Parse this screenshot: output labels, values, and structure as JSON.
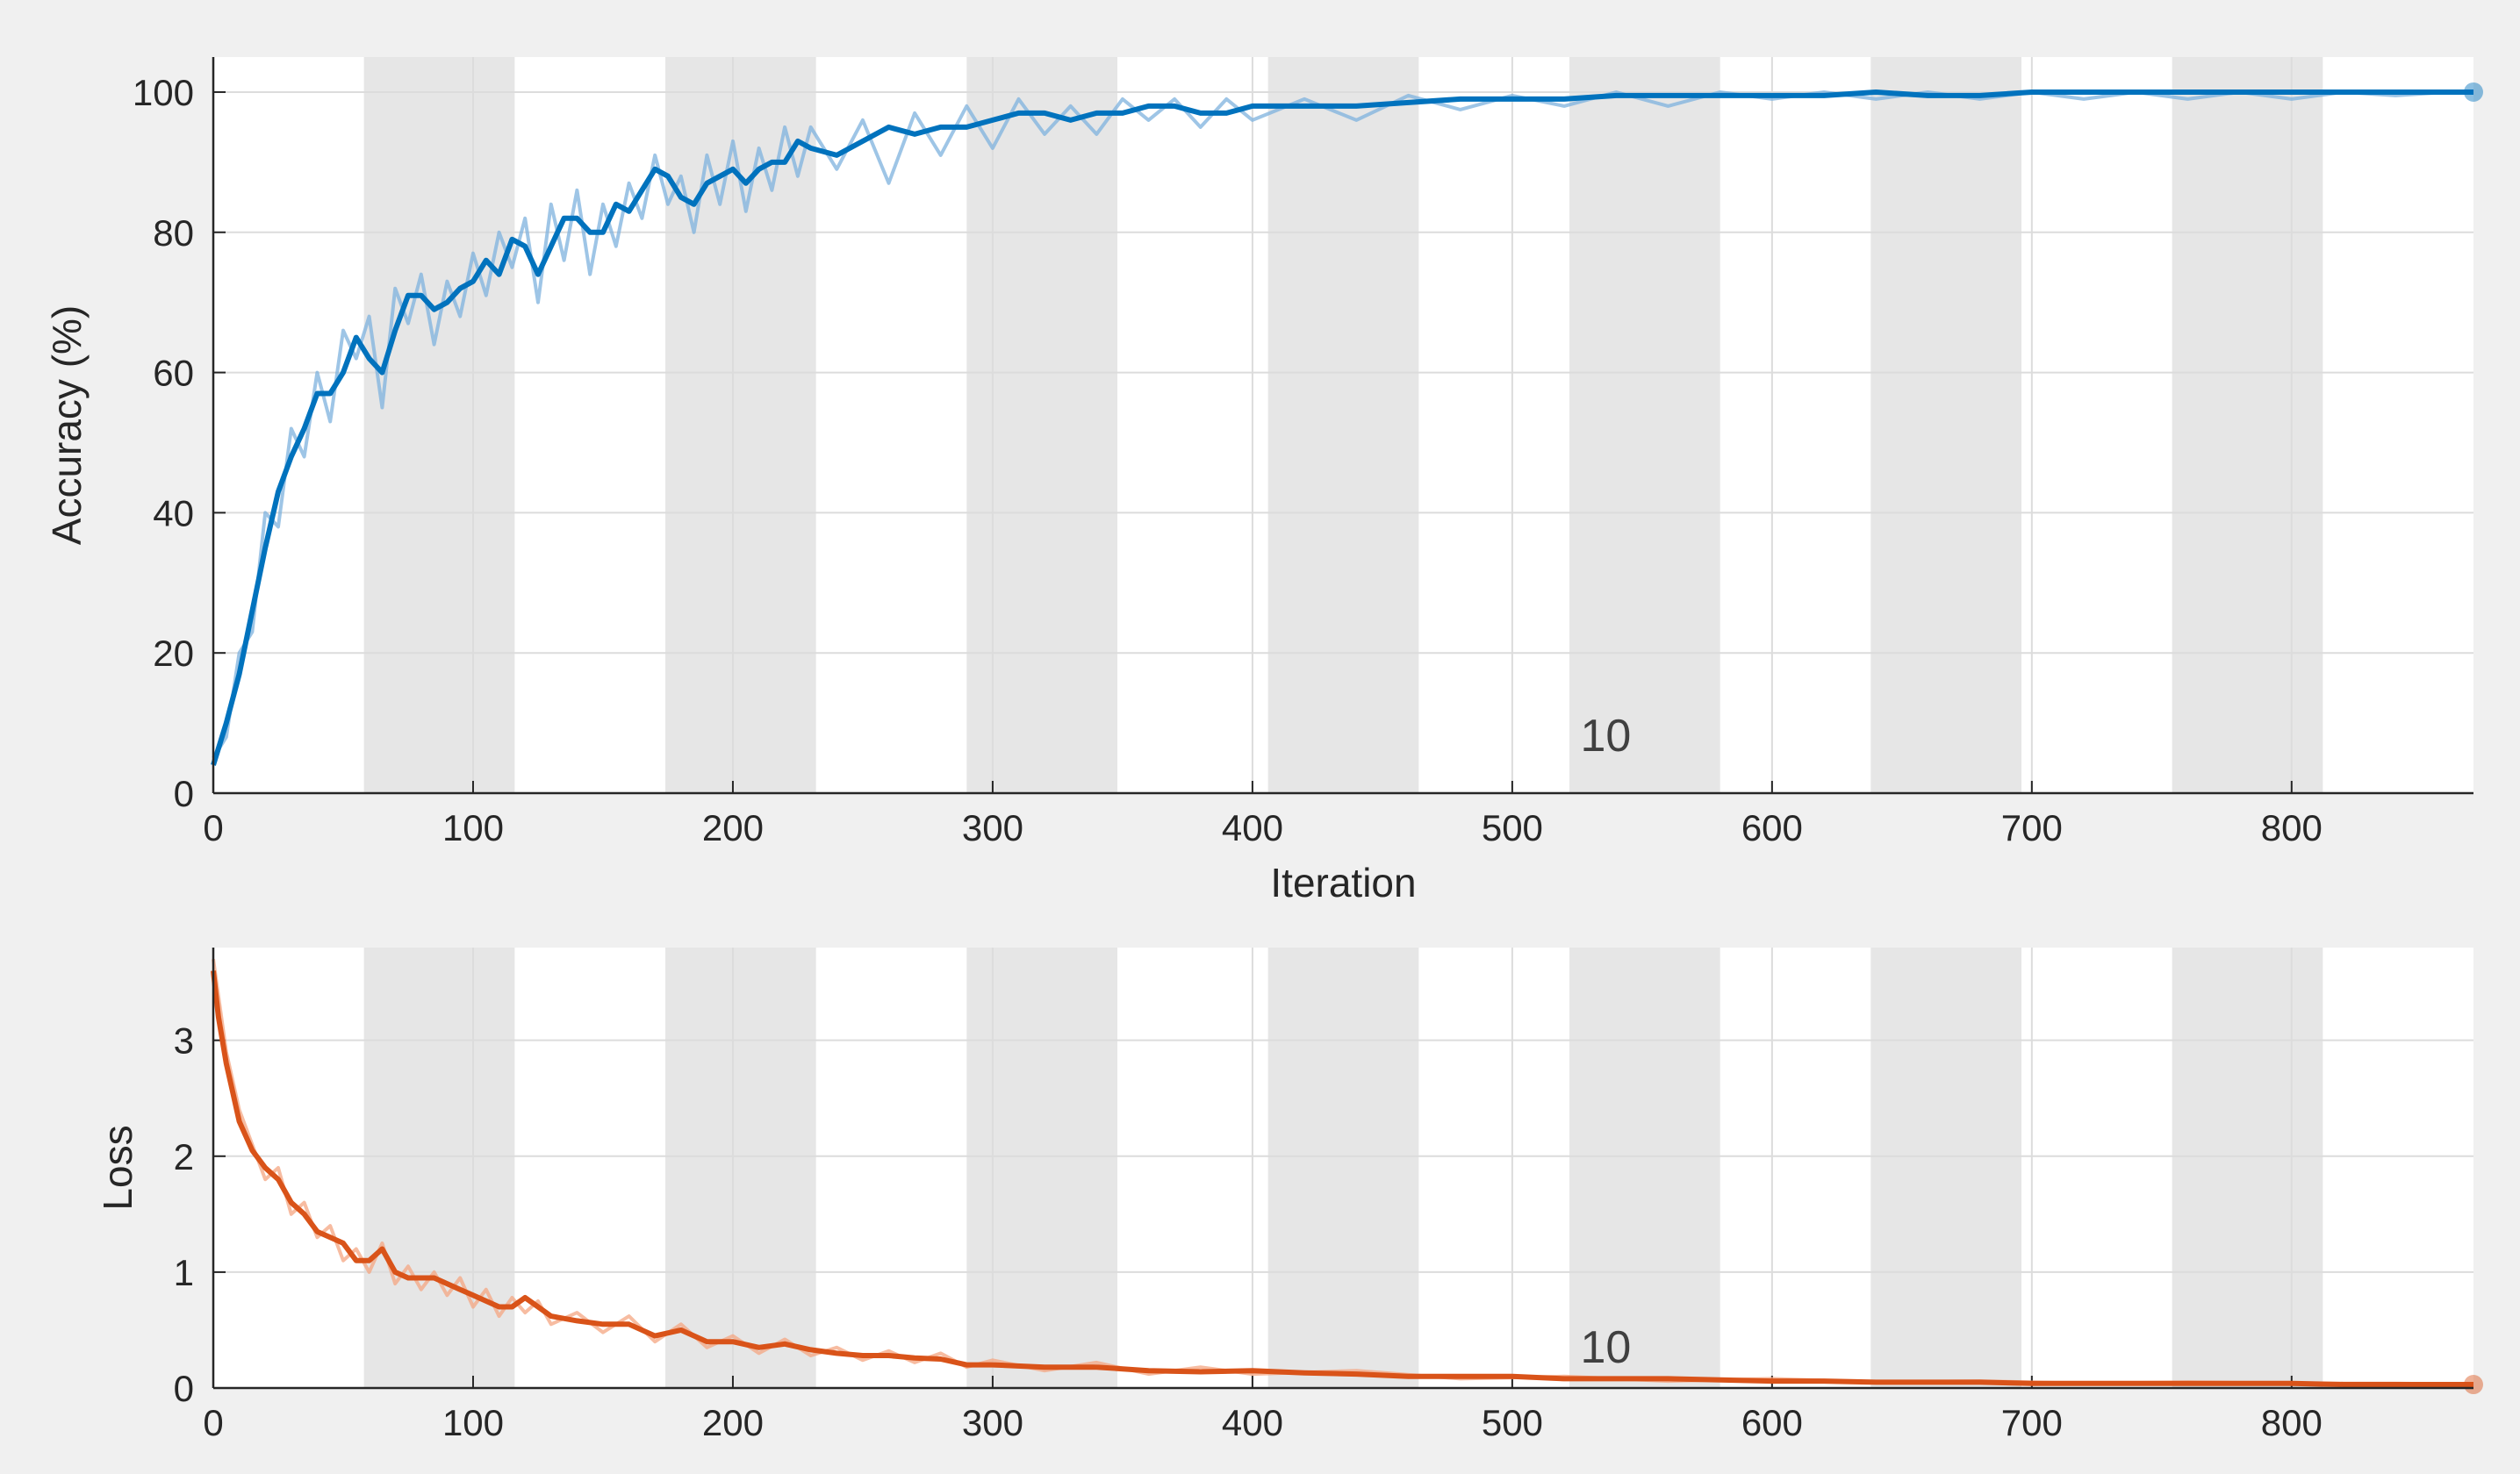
{
  "chart_data": [
    {
      "type": "line",
      "title": "",
      "xlabel": "Iteration",
      "ylabel": "Accuracy (%)",
      "xlim": [
        0,
        870
      ],
      "ylim": [
        0,
        105
      ],
      "xticks": [
        "0",
        "100",
        "200",
        "300",
        "400",
        "500",
        "600",
        "700",
        "800"
      ],
      "yticks": [
        "0",
        "20",
        "40",
        "60",
        "80",
        "100"
      ],
      "grid": true,
      "epoch_bands": [
        [
          58,
          116
        ],
        [
          174,
          232
        ],
        [
          290,
          348
        ],
        [
          406,
          464
        ],
        [
          522,
          580
        ],
        [
          638,
          696
        ],
        [
          754,
          812
        ]
      ],
      "annotation": {
        "text": "10",
        "x": 536,
        "y": 6
      },
      "series": [
        {
          "role": "smoothed",
          "color": "#0072bd",
          "x": [
            0,
            5,
            10,
            15,
            20,
            25,
            30,
            35,
            40,
            45,
            50,
            55,
            60,
            65,
            70,
            75,
            80,
            85,
            90,
            95,
            100,
            105,
            110,
            115,
            120,
            125,
            130,
            135,
            140,
            145,
            150,
            155,
            160,
            165,
            170,
            175,
            180,
            185,
            190,
            195,
            200,
            205,
            210,
            215,
            220,
            225,
            230,
            240,
            250,
            260,
            270,
            280,
            290,
            300,
            310,
            320,
            330,
            340,
            350,
            360,
            370,
            380,
            390,
            400,
            420,
            440,
            460,
            480,
            500,
            520,
            540,
            560,
            580,
            600,
            620,
            640,
            660,
            680,
            700,
            720,
            740,
            760,
            780,
            800,
            820,
            840,
            860,
            870
          ],
          "y": [
            4,
            10,
            17,
            26,
            35,
            43,
            48,
            52,
            57,
            57,
            60,
            65,
            62,
            60,
            66,
            71,
            71,
            69,
            70,
            72,
            73,
            76,
            74,
            79,
            78,
            74,
            78,
            82,
            82,
            80,
            80,
            84,
            83,
            86,
            89,
            88,
            85,
            84,
            87,
            88,
            89,
            87,
            89,
            90,
            90,
            93,
            92,
            91,
            93,
            95,
            94,
            95,
            95,
            96,
            97,
            97,
            96,
            97,
            97,
            98,
            98,
            97,
            97,
            98,
            98,
            98,
            98.5,
            99,
            99,
            99,
            99.5,
            99.5,
            99.5,
            99.5,
            99.5,
            100,
            99.5,
            99.5,
            100,
            100,
            100,
            100,
            100,
            100,
            100,
            100,
            100,
            100
          ]
        },
        {
          "role": "raw",
          "color": "#7eb2dd",
          "x": [
            0,
            5,
            10,
            15,
            20,
            25,
            30,
            35,
            40,
            45,
            50,
            55,
            60,
            65,
            70,
            75,
            80,
            85,
            90,
            95,
            100,
            105,
            110,
            115,
            120,
            125,
            130,
            135,
            140,
            145,
            150,
            155,
            160,
            165,
            170,
            175,
            180,
            185,
            190,
            195,
            200,
            205,
            210,
            215,
            220,
            225,
            230,
            240,
            250,
            260,
            270,
            280,
            290,
            300,
            310,
            320,
            330,
            340,
            350,
            360,
            370,
            380,
            390,
            400,
            420,
            440,
            460,
            480,
            500,
            520,
            540,
            560,
            580,
            600,
            620,
            640,
            660,
            680,
            700,
            720,
            740,
            760,
            780,
            800,
            820,
            840,
            860,
            870
          ],
          "y": [
            5,
            8,
            20,
            23,
            40,
            38,
            52,
            48,
            60,
            53,
            66,
            62,
            68,
            55,
            72,
            67,
            74,
            64,
            73,
            68,
            77,
            71,
            80,
            75,
            82,
            70,
            84,
            76,
            86,
            74,
            84,
            78,
            87,
            82,
            91,
            84,
            88,
            80,
            91,
            84,
            93,
            83,
            92,
            86,
            95,
            88,
            95,
            89,
            96,
            87,
            97,
            91,
            98,
            92,
            99,
            94,
            98,
            94,
            99,
            96,
            99,
            95,
            99,
            96,
            99,
            96,
            99.5,
            97.5,
            99.5,
            98,
            100,
            98,
            100,
            99,
            100,
            99,
            100,
            99,
            100,
            99,
            100,
            99,
            100,
            99,
            100,
            99.5,
            100,
            100
          ]
        }
      ]
    },
    {
      "type": "line",
      "title": "",
      "xlabel": "",
      "ylabel": "Loss",
      "xlim": [
        0,
        870
      ],
      "ylim": [
        0,
        3.8
      ],
      "xticks": [
        "0",
        "100",
        "200",
        "300",
        "400",
        "500",
        "600",
        "700",
        "800"
      ],
      "yticks": [
        "0",
        "1",
        "2",
        "3"
      ],
      "grid": true,
      "epoch_bands": [
        [
          58,
          116
        ],
        [
          174,
          232
        ],
        [
          290,
          348
        ],
        [
          406,
          464
        ],
        [
          522,
          580
        ],
        [
          638,
          696
        ],
        [
          754,
          812
        ]
      ],
      "annotation": {
        "text": "10",
        "x": 536,
        "y": 0.22
      },
      "series": [
        {
          "role": "smoothed",
          "color": "#d95319",
          "x": [
            0,
            2,
            5,
            8,
            10,
            15,
            20,
            25,
            30,
            35,
            40,
            45,
            50,
            55,
            60,
            65,
            70,
            75,
            80,
            85,
            90,
            95,
            100,
            105,
            110,
            115,
            120,
            125,
            130,
            140,
            150,
            160,
            170,
            180,
            190,
            200,
            210,
            220,
            230,
            240,
            250,
            260,
            270,
            280,
            290,
            300,
            320,
            340,
            360,
            380,
            400,
            420,
            440,
            460,
            480,
            500,
            520,
            540,
            560,
            580,
            600,
            620,
            640,
            660,
            680,
            700,
            720,
            740,
            760,
            780,
            800,
            820,
            840,
            860,
            870
          ],
          "y": [
            3.6,
            3.2,
            2.8,
            2.5,
            2.3,
            2.05,
            1.9,
            1.8,
            1.6,
            1.5,
            1.35,
            1.3,
            1.25,
            1.1,
            1.1,
            1.2,
            1.0,
            0.95,
            0.95,
            0.95,
            0.9,
            0.85,
            0.8,
            0.75,
            0.7,
            0.7,
            0.78,
            0.7,
            0.62,
            0.58,
            0.55,
            0.55,
            0.45,
            0.5,
            0.4,
            0.4,
            0.35,
            0.38,
            0.33,
            0.3,
            0.28,
            0.28,
            0.26,
            0.25,
            0.2,
            0.2,
            0.18,
            0.18,
            0.15,
            0.14,
            0.15,
            0.13,
            0.12,
            0.1,
            0.1,
            0.1,
            0.08,
            0.08,
            0.08,
            0.07,
            0.06,
            0.06,
            0.05,
            0.05,
            0.05,
            0.04,
            0.04,
            0.04,
            0.04,
            0.04,
            0.04,
            0.03,
            0.03,
            0.03,
            0.03
          ]
        },
        {
          "role": "raw",
          "color": "#f4a582",
          "x": [
            0,
            5,
            10,
            15,
            20,
            25,
            30,
            35,
            40,
            45,
            50,
            55,
            60,
            65,
            70,
            75,
            80,
            85,
            90,
            95,
            100,
            105,
            110,
            115,
            120,
            125,
            130,
            140,
            150,
            160,
            170,
            180,
            190,
            200,
            210,
            220,
            230,
            240,
            250,
            260,
            270,
            280,
            290,
            300,
            320,
            340,
            360,
            380,
            400,
            440,
            480,
            520,
            560,
            600,
            640,
            680,
            720,
            760,
            800,
            840,
            870
          ],
          "y": [
            3.7,
            2.9,
            2.4,
            2.1,
            1.8,
            1.9,
            1.5,
            1.6,
            1.3,
            1.4,
            1.1,
            1.2,
            1.0,
            1.25,
            0.9,
            1.05,
            0.85,
            1.0,
            0.8,
            0.95,
            0.7,
            0.85,
            0.62,
            0.78,
            0.65,
            0.75,
            0.55,
            0.65,
            0.48,
            0.62,
            0.4,
            0.55,
            0.35,
            0.45,
            0.3,
            0.42,
            0.28,
            0.35,
            0.24,
            0.32,
            0.22,
            0.3,
            0.18,
            0.24,
            0.15,
            0.22,
            0.12,
            0.18,
            0.12,
            0.15,
            0.08,
            0.1,
            0.06,
            0.08,
            0.05,
            0.06,
            0.04,
            0.05,
            0.04,
            0.04,
            0.03
          ]
        }
      ]
    }
  ]
}
